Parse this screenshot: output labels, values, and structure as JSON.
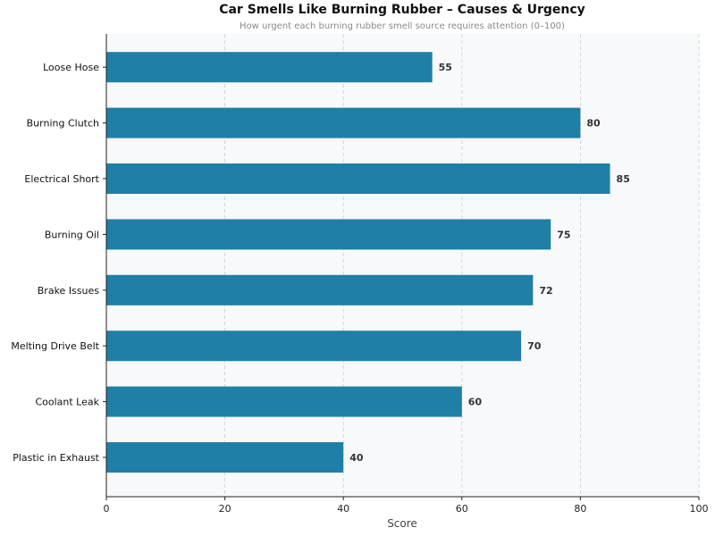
{
  "chart_data": {
    "type": "bar",
    "orientation": "horizontal",
    "title": "Car Smells Like Burning Rubber – Causes & Urgency",
    "subtitle": "How urgent each burning rubber smell source requires attention (0–100)",
    "xlabel": "Score",
    "ylabel": "",
    "xlim": [
      0,
      100
    ],
    "xticks": [
      0,
      20,
      40,
      60,
      80,
      100
    ],
    "grid": "vertical dashed",
    "categories": [
      "Loose Hose",
      "Burning Clutch",
      "Electrical Short",
      "Burning Oil",
      "Brake Issues",
      "Melting Drive Belt",
      "Coolant Leak",
      "Plastic in Exhaust"
    ],
    "values": [
      55,
      80,
      85,
      75,
      72,
      70,
      60,
      40
    ],
    "bar_color": "#1f7fa6",
    "background_color": "#f8f9fb"
  }
}
